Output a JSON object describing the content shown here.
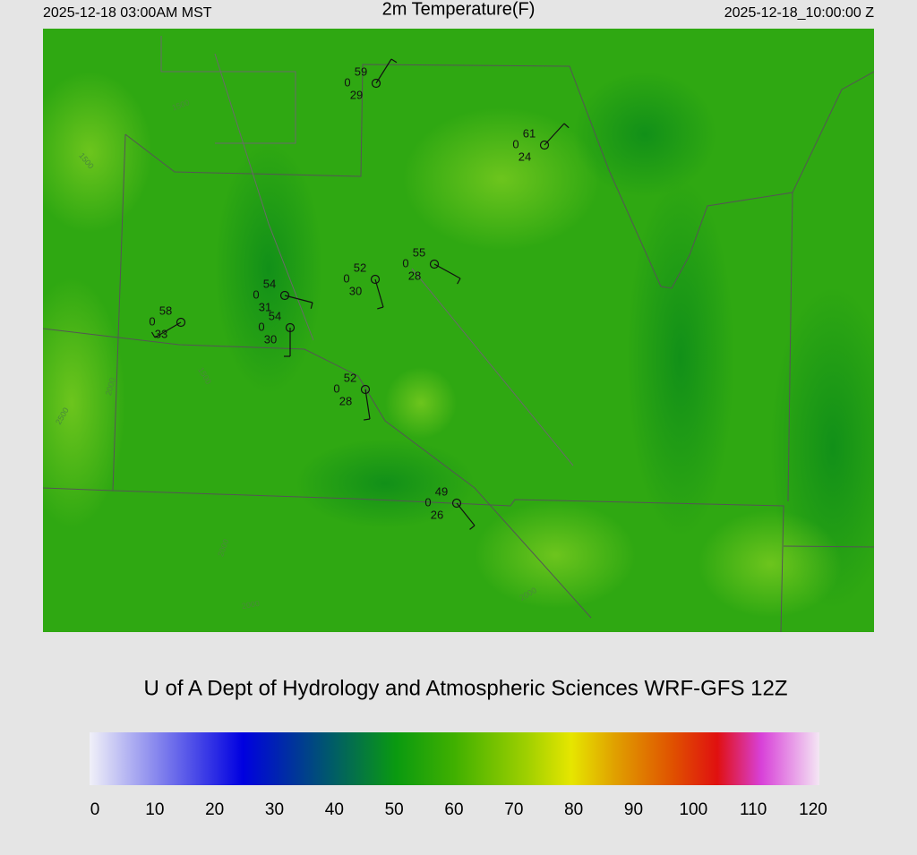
{
  "header": {
    "local_time": "2025-12-18 03:00AM MST",
    "title": "2m Temperature(F)",
    "utc_time": "2025-12-18_10:00:00 Z"
  },
  "stations": [
    {
      "temperature": 59,
      "pressure": 0,
      "dewpoint": 29
    },
    {
      "temperature": 61,
      "pressure": 0,
      "dewpoint": 24
    },
    {
      "temperature": 55,
      "pressure": 0,
      "dewpoint": 28
    },
    {
      "temperature": 52,
      "pressure": 0,
      "dewpoint": 30
    },
    {
      "temperature": 54,
      "pressure": 0,
      "dewpoint": 31
    },
    {
      "temperature": 54,
      "pressure": 0,
      "dewpoint": 30
    },
    {
      "temperature": 58,
      "pressure": 0,
      "dewpoint": 33
    },
    {
      "temperature": 52,
      "pressure": 0,
      "dewpoint": 28
    },
    {
      "temperature": 49,
      "pressure": 0,
      "dewpoint": 26
    }
  ],
  "contour_labels": [
    "1500",
    "1500",
    "2000",
    "2500",
    "1500",
    "2000",
    "2000",
    "2000"
  ],
  "footer": {
    "credit": "U of A Dept of Hydrology and Atmospheric Sciences WRF-GFS 12Z"
  },
  "colorbar": {
    "range": [
      0,
      120
    ],
    "ticks": [
      0,
      10,
      20,
      30,
      40,
      50,
      60,
      70,
      80,
      90,
      100,
      110,
      120
    ]
  }
}
